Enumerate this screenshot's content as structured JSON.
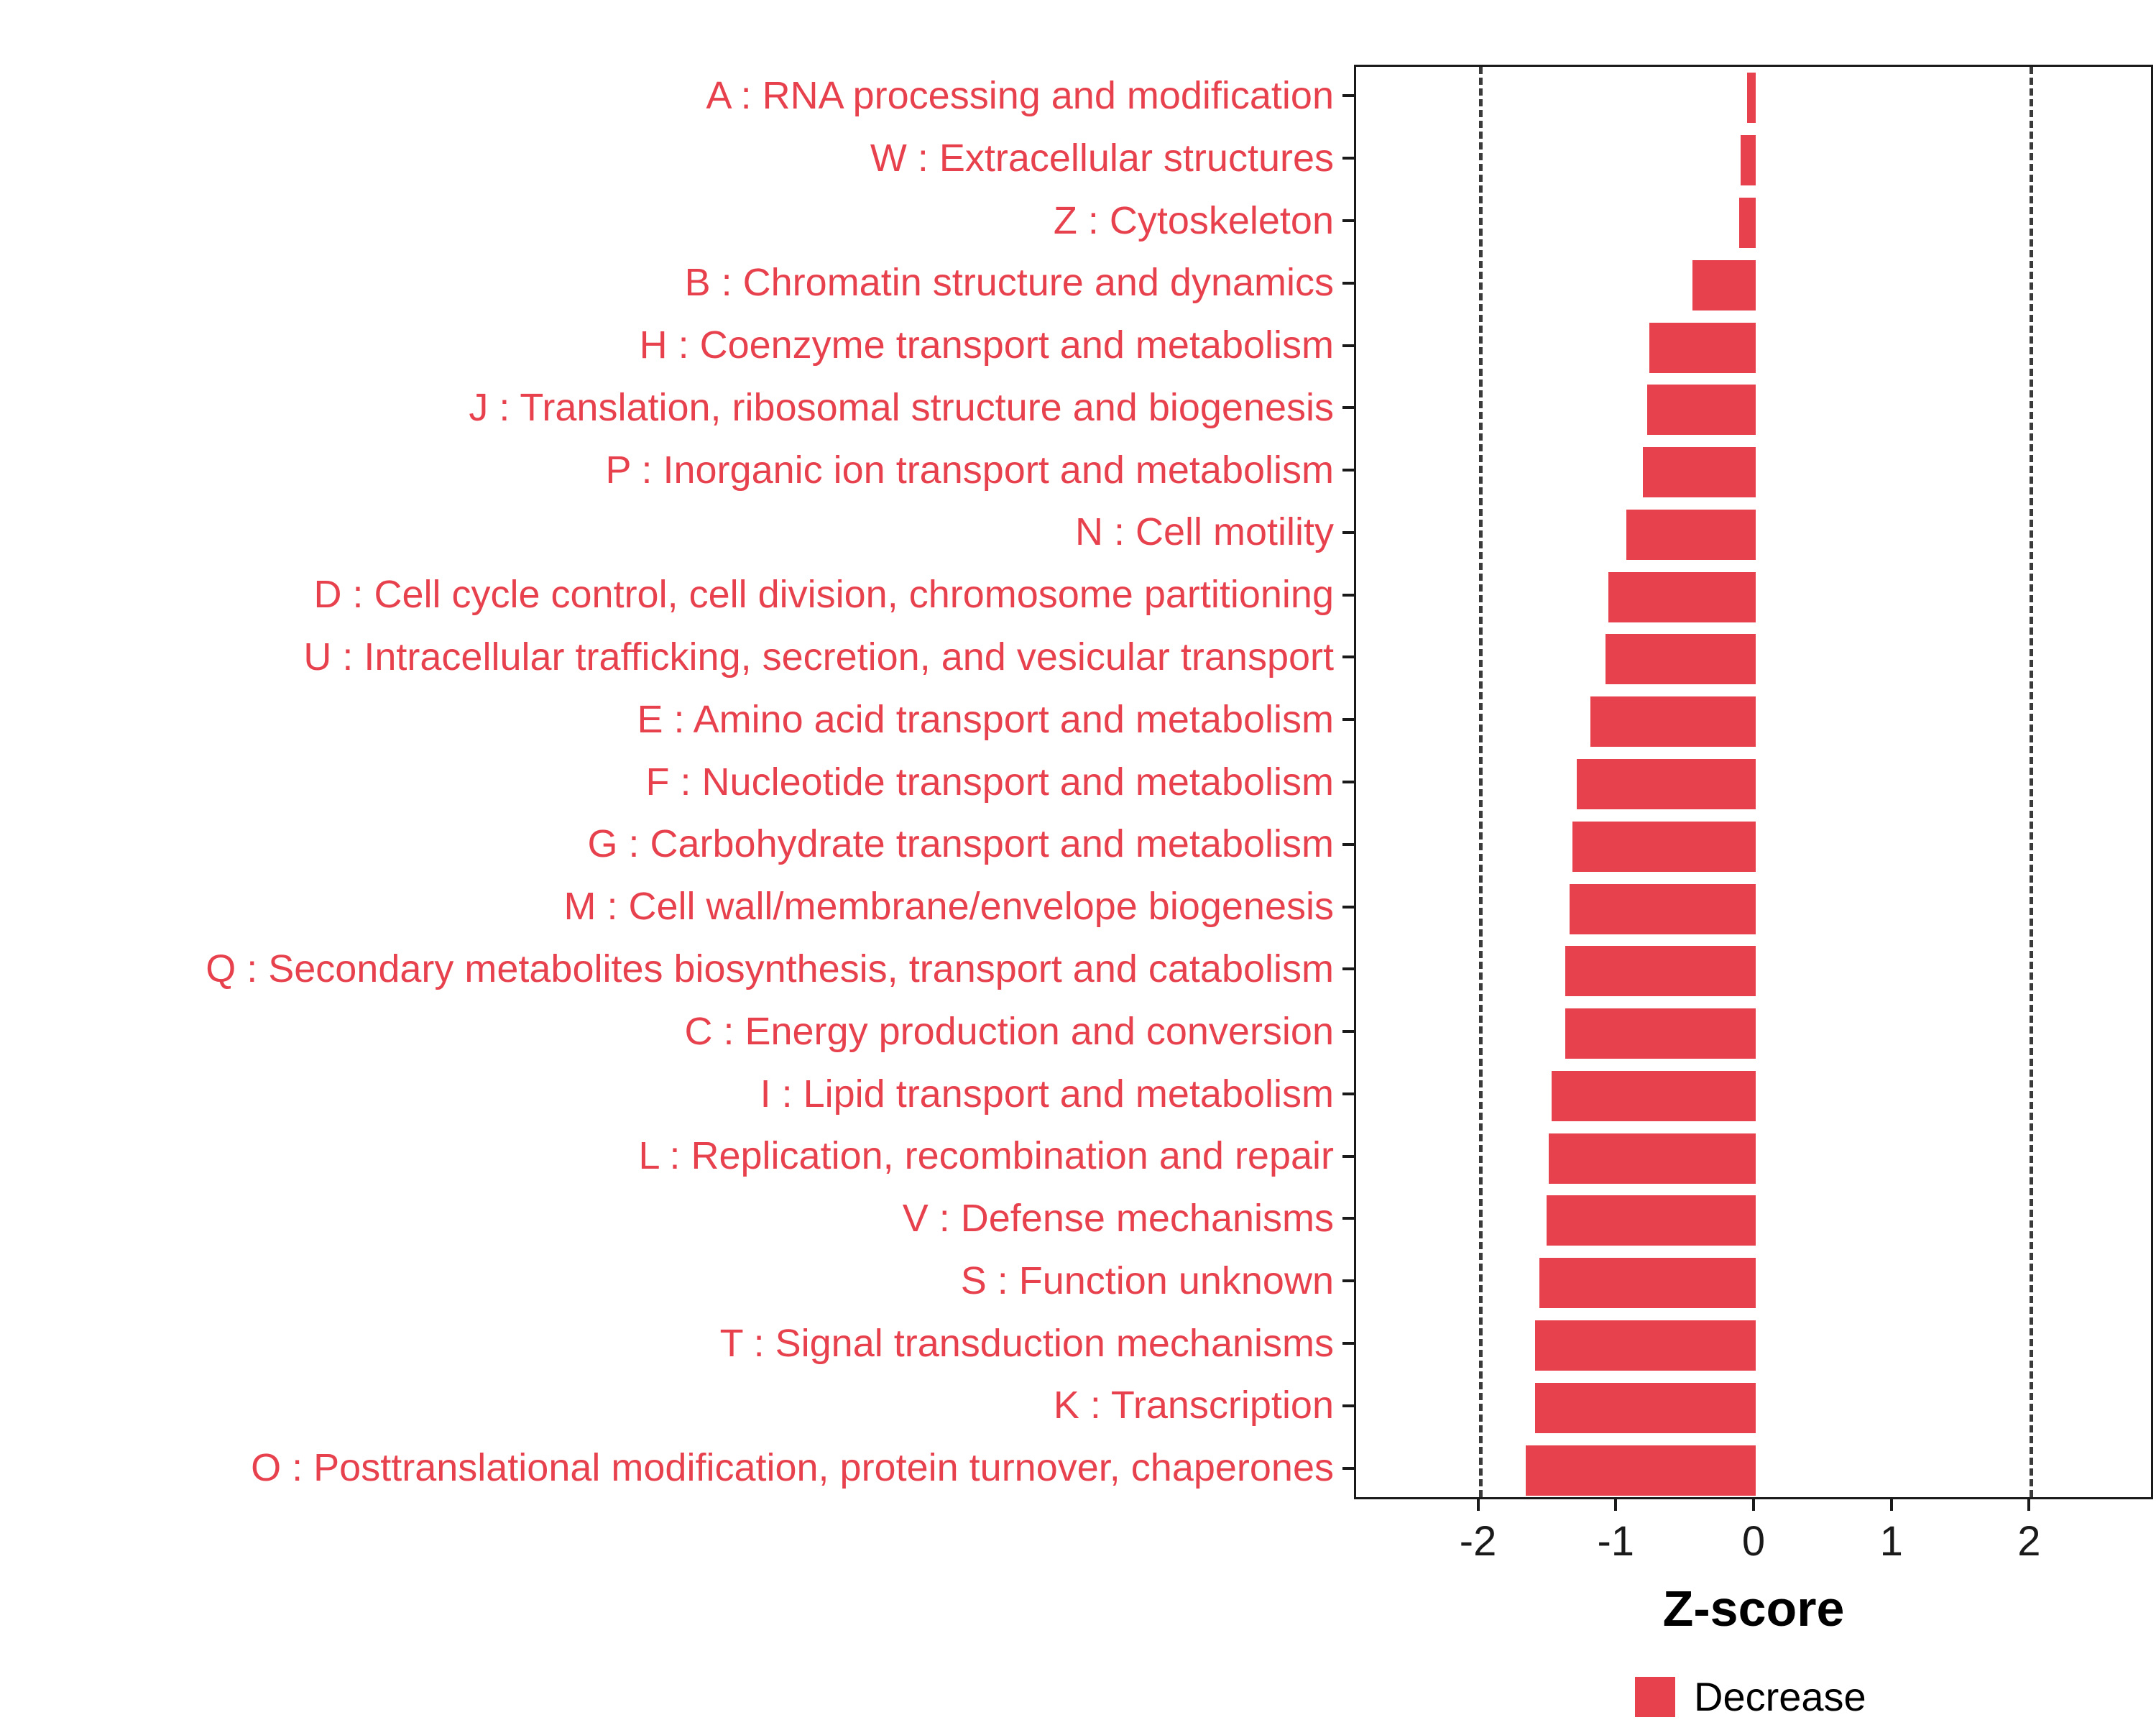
{
  "colors": {
    "bar": "#E8414E",
    "category_label": "#E8414E",
    "axis_text": "#1a1a1a",
    "reference_line": "#3a3a3a",
    "panel_border": "#1a1a1a",
    "background": "#FFFFFF"
  },
  "chart_data": {
    "type": "bar",
    "orientation": "horizontal",
    "title": "",
    "xlabel": "Z-score",
    "ylabel": "",
    "xlim": [
      -2.9,
      2.9
    ],
    "xticks": [
      -2,
      -1,
      0,
      1,
      2
    ],
    "reference_lines": [
      -2,
      2
    ],
    "grid": false,
    "legend_position": "bottom",
    "legend": [
      {
        "label": "Decrease",
        "color": "#E8414E"
      }
    ],
    "categories": [
      "A : RNA processing and modification",
      "W : Extracellular structures",
      "Z : Cytoskeleton",
      "B : Chromatin structure and dynamics",
      "H : Coenzyme transport and metabolism",
      "J : Translation, ribosomal structure and biogenesis",
      "P : Inorganic ion transport and metabolism",
      "N : Cell motility",
      "D : Cell cycle control, cell division, chromosome partitioning",
      "U : Intracellular trafficking, secretion, and vesicular transport",
      "E : Amino acid transport and metabolism",
      "F : Nucleotide transport and metabolism",
      "G : Carbohydrate transport and metabolism",
      "M : Cell wall/membrane/envelope biogenesis",
      "Q : Secondary metabolites biosynthesis, transport and catabolism",
      "C : Energy production and conversion",
      "I : Lipid transport and metabolism",
      "L : Replication, recombination and repair",
      "V : Defense mechanisms",
      "S : Function unknown",
      "T : Signal transduction mechanisms",
      "K : Transcription",
      "O : Posttranslational modification, protein turnover, chaperones"
    ],
    "values": [
      -0.06,
      -0.11,
      -0.12,
      -0.46,
      -0.77,
      -0.79,
      -0.82,
      -0.94,
      -1.07,
      -1.09,
      -1.2,
      -1.3,
      -1.33,
      -1.35,
      -1.38,
      -1.38,
      -1.48,
      -1.5,
      -1.52,
      -1.57,
      -1.6,
      -1.6,
      -1.67
    ]
  }
}
